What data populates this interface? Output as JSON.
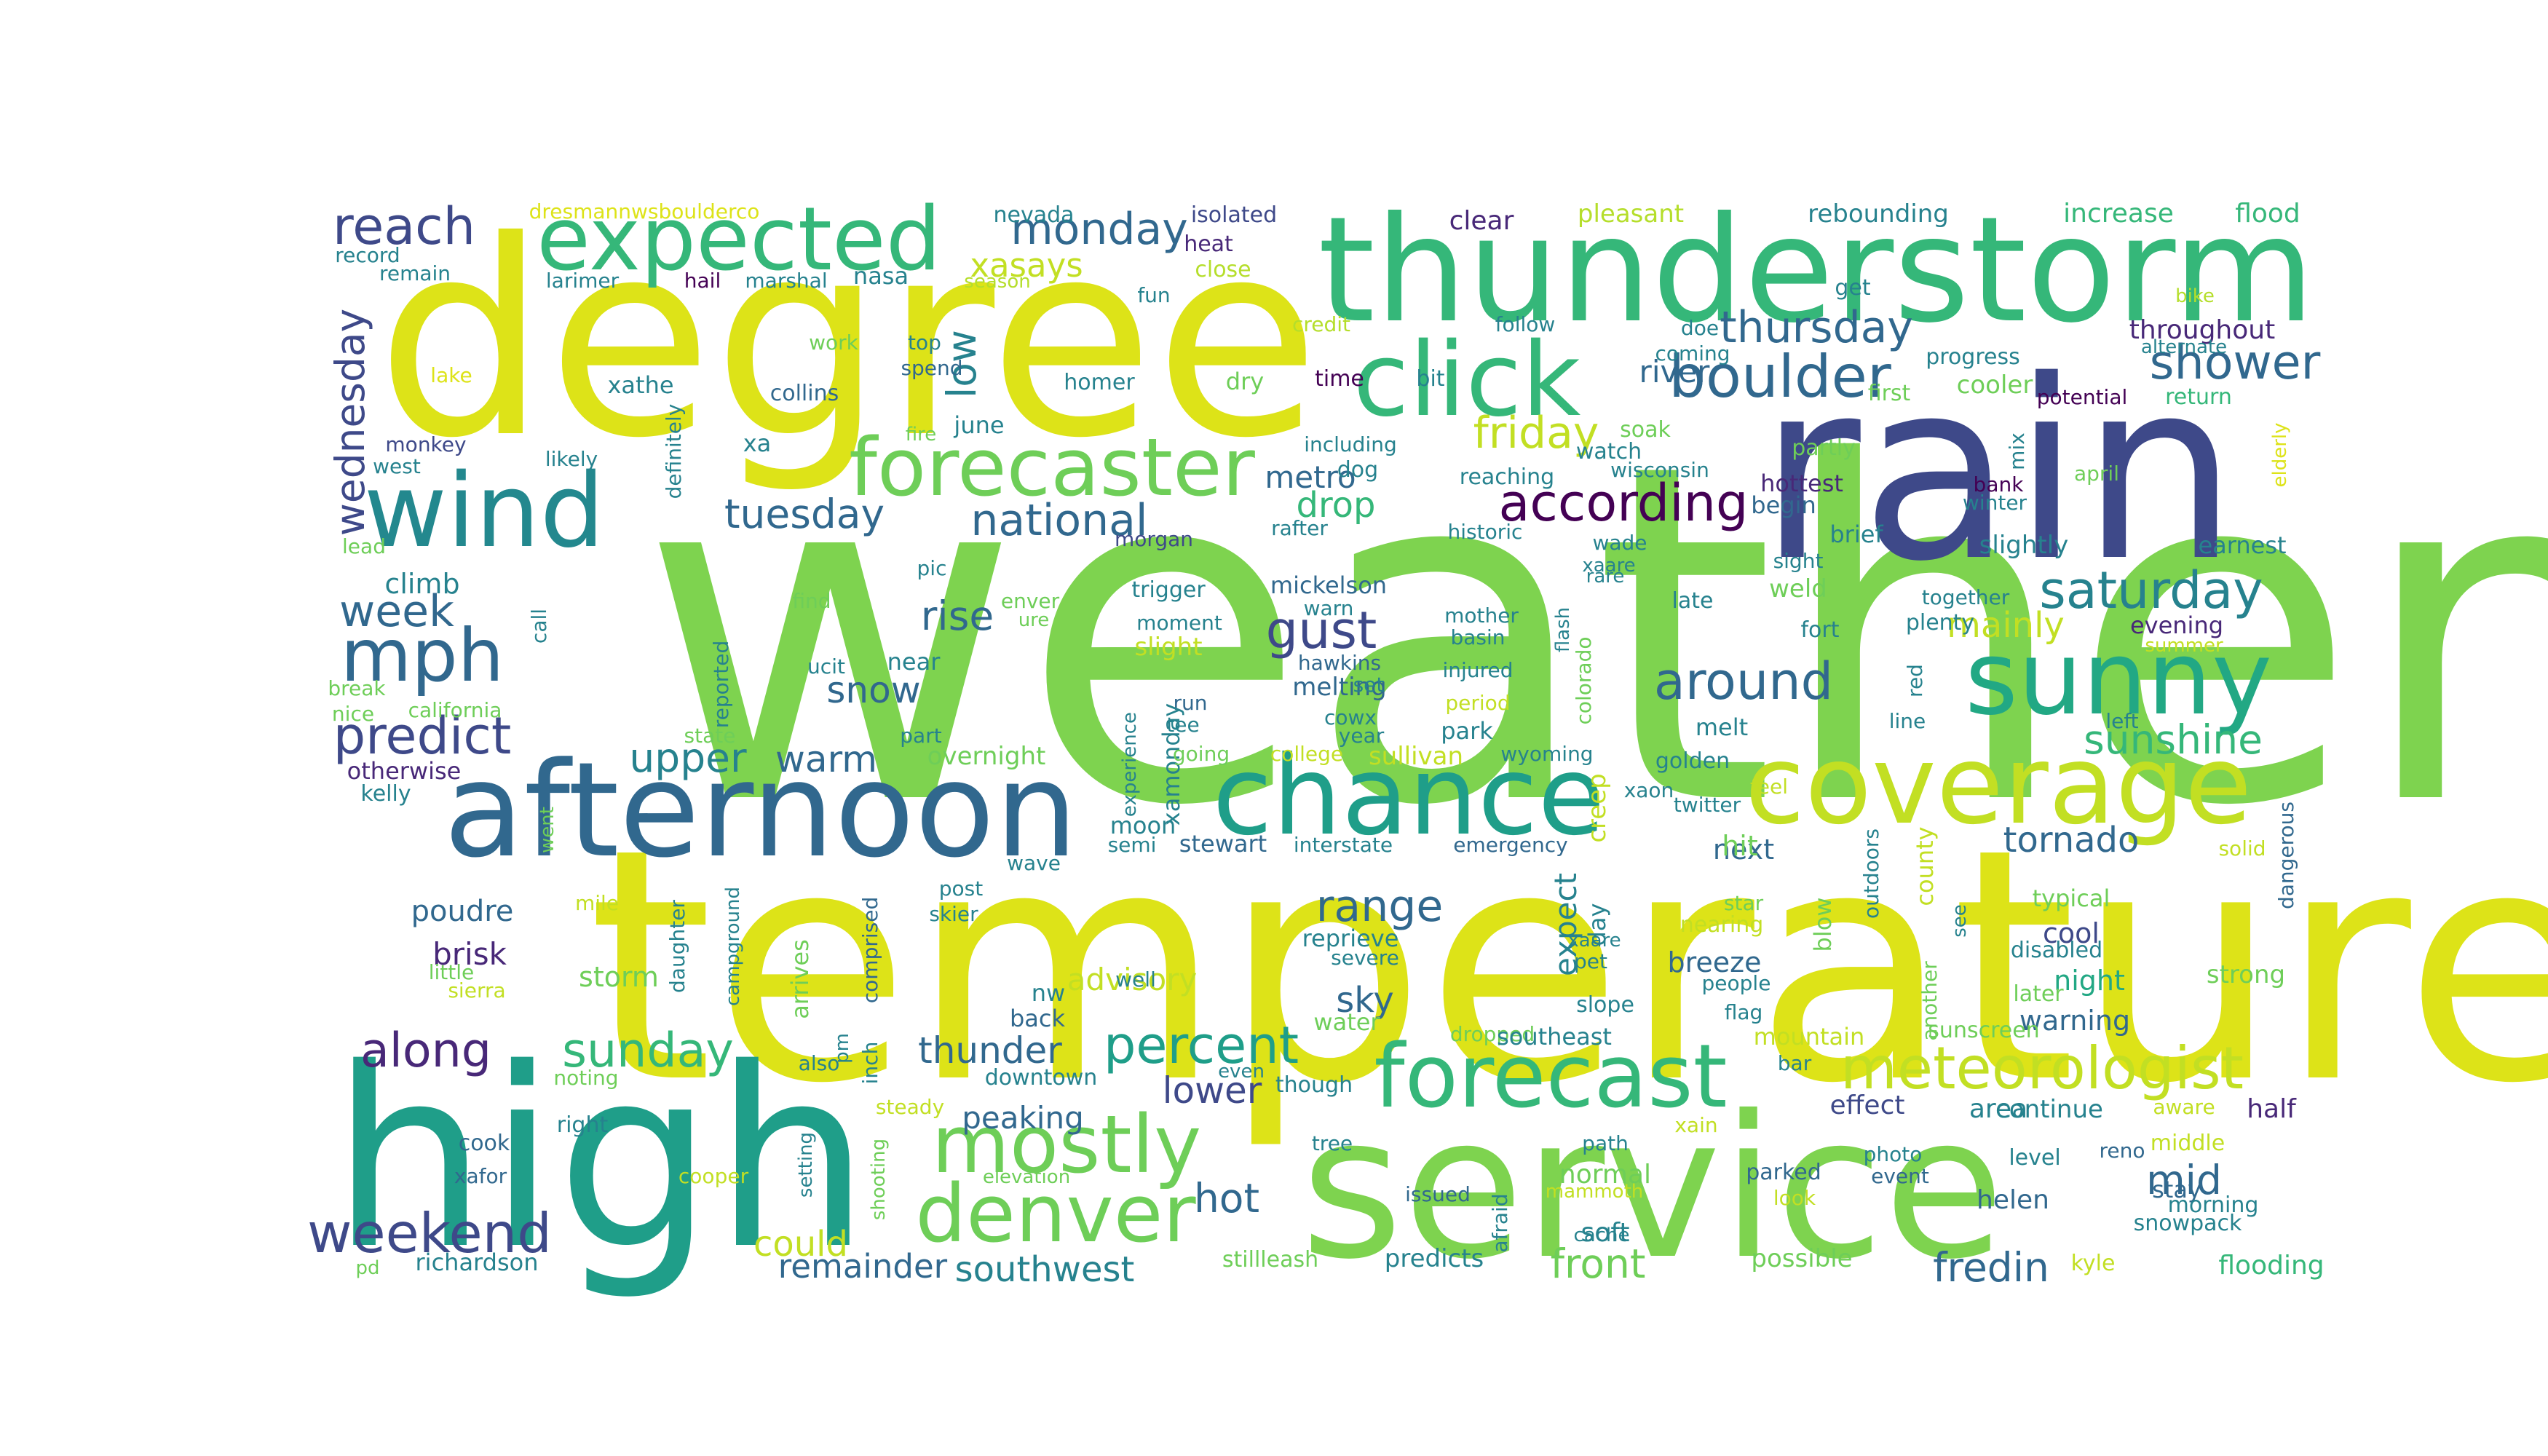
{
  "figure": {
    "background": "#ffffff",
    "palette": [
      "#440154",
      "#482878",
      "#3e4989",
      "#31688e",
      "#26828e",
      "#1f9e89",
      "#35b779",
      "#6ece58",
      "#b5de2b",
      "#fde725"
    ]
  },
  "words": [
    {
      "text": "weather",
      "color": "#7ed34f"
    },
    {
      "text": "temperature",
      "color": "#dde318"
    },
    {
      "text": "degree",
      "color": "#dde318"
    },
    {
      "text": "rain",
      "color": "#3e4989"
    },
    {
      "text": "high",
      "color": "#1f9e89"
    },
    {
      "text": "service",
      "color": "#7ed34f"
    },
    {
      "text": "thunderstorm",
      "color": "#35b779"
    },
    {
      "text": "afternoon",
      "color": "#31688e"
    },
    {
      "text": "chance",
      "color": "#1f9e89"
    },
    {
      "text": "coverage",
      "color": "#c2df23"
    },
    {
      "text": "sunny",
      "color": "#22a884"
    },
    {
      "text": "click",
      "color": "#35b779"
    },
    {
      "text": "wind",
      "color": "#23888e"
    },
    {
      "text": "forecast",
      "color": "#35b779"
    },
    {
      "text": "expected",
      "color": "#35b779"
    },
    {
      "text": "forecaster",
      "color": "#6ece58"
    },
    {
      "text": "mostly",
      "color": "#6ece58"
    },
    {
      "text": "denver",
      "color": "#6ece58"
    },
    {
      "text": "mph",
      "color": "#31688e"
    },
    {
      "text": "meteorologist",
      "color": "#c2df23"
    },
    {
      "text": "boulder",
      "color": "#31688e"
    },
    {
      "text": "according",
      "color": "#440154"
    },
    {
      "text": "weekend",
      "color": "#3e4989"
    },
    {
      "text": "predict",
      "color": "#3e4989"
    },
    {
      "text": "reach",
      "color": "#3e4989"
    },
    {
      "text": "saturday",
      "color": "#26828e"
    },
    {
      "text": "sunday",
      "color": "#35b779"
    },
    {
      "text": "along",
      "color": "#482878"
    },
    {
      "text": "percent",
      "color": "#1f9e89"
    },
    {
      "text": "gust",
      "color": "#3e4989"
    },
    {
      "text": "around",
      "color": "#31688e"
    },
    {
      "text": "shower",
      "color": "#31688e"
    },
    {
      "text": "national",
      "color": "#31688e"
    },
    {
      "text": "thursday",
      "color": "#31688e"
    },
    {
      "text": "friday",
      "color": "#c2df23"
    },
    {
      "text": "monday",
      "color": "#31688e"
    },
    {
      "text": "week",
      "color": "#31688e"
    },
    {
      "text": "tuesday",
      "color": "#31688e"
    },
    {
      "text": "wednesday",
      "color": "#3e4989"
    },
    {
      "text": "range",
      "color": "#31688e"
    },
    {
      "text": "sunshine",
      "color": "#35b779"
    },
    {
      "text": "upper",
      "color": "#26828e"
    },
    {
      "text": "rise",
      "color": "#31688e"
    },
    {
      "text": "snow",
      "color": "#31688e"
    },
    {
      "text": "thunder",
      "color": "#31688e"
    },
    {
      "text": "tornado",
      "color": "#31688e"
    },
    {
      "text": "warm",
      "color": "#31688e"
    },
    {
      "text": "lower",
      "color": "#3e4989"
    },
    {
      "text": "hot",
      "color": "#31688e"
    },
    {
      "text": "mid",
      "color": "#31688e"
    },
    {
      "text": "front",
      "color": "#6ece58"
    },
    {
      "text": "fredin",
      "color": "#31688e"
    },
    {
      "text": "southwest",
      "color": "#26828e"
    },
    {
      "text": "remainder",
      "color": "#31688e"
    },
    {
      "text": "mainly",
      "color": "#c2df23"
    },
    {
      "text": "low",
      "color": "#26828e"
    },
    {
      "text": "xasays",
      "color": "#c2df23"
    },
    {
      "text": "drop",
      "color": "#35b779"
    },
    {
      "text": "metro",
      "color": "#31688e"
    },
    {
      "text": "river",
      "color": "#31688e"
    },
    {
      "text": "sky",
      "color": "#31688e"
    },
    {
      "text": "peaking",
      "color": "#31688e"
    },
    {
      "text": "advisory",
      "color": "#c2df23"
    },
    {
      "text": "could",
      "color": "#c2df23"
    },
    {
      "text": "expect",
      "color": "#26828e"
    },
    {
      "text": "climb",
      "color": "#26828e"
    },
    {
      "text": "poudre",
      "color": "#31688e"
    },
    {
      "text": "brisk",
      "color": "#482878"
    },
    {
      "text": "storm",
      "color": "#6ece58"
    },
    {
      "text": "cool",
      "color": "#3e4989"
    },
    {
      "text": "night",
      "color": "#22a884"
    },
    {
      "text": "warning",
      "color": "#31688e"
    },
    {
      "text": "breeze",
      "color": "#31688e"
    },
    {
      "text": "next",
      "color": "#31688e"
    },
    {
      "text": "hit",
      "color": "#6ece58"
    },
    {
      "text": "area",
      "color": "#26828e"
    },
    {
      "text": "half",
      "color": "#482878"
    },
    {
      "text": "continue",
      "color": "#26828e"
    },
    {
      "text": "effect",
      "color": "#3e4989"
    },
    {
      "text": "soft",
      "color": "#26828e"
    },
    {
      "text": "normal",
      "color": "#6ece58"
    },
    {
      "text": "helen",
      "color": "#31688e"
    },
    {
      "text": "flooding",
      "color": "#35b779"
    },
    {
      "text": "possible",
      "color": "#6ece58"
    },
    {
      "text": "throughout",
      "color": "#482878"
    },
    {
      "text": "increase",
      "color": "#35b779"
    },
    {
      "text": "flood",
      "color": "#35b779"
    },
    {
      "text": "rebounding",
      "color": "#26828e"
    },
    {
      "text": "pleasant",
      "color": "#b5de2b"
    },
    {
      "text": "clear",
      "color": "#482878"
    },
    {
      "text": "isolated",
      "color": "#3e4989"
    },
    {
      "text": "heat",
      "color": "#482878"
    },
    {
      "text": "nevada",
      "color": "#26828e"
    },
    {
      "text": "record",
      "color": "#26828e"
    },
    {
      "text": "remain",
      "color": "#26828e"
    },
    {
      "text": "larimer",
      "color": "#26828e"
    },
    {
      "text": "hail",
      "color": "#440154"
    },
    {
      "text": "marshal",
      "color": "#26828e"
    },
    {
      "text": "nasa",
      "color": "#26828e"
    },
    {
      "text": "season",
      "color": "#b5de2b"
    },
    {
      "text": "dresmannwsboulderco",
      "color": "#dde318"
    },
    {
      "text": "close",
      "color": "#b5de2b"
    },
    {
      "text": "fun",
      "color": "#26828e"
    },
    {
      "text": "credit",
      "color": "#b5de2b"
    },
    {
      "text": "follow",
      "color": "#26828e"
    },
    {
      "text": "doe",
      "color": "#26828e"
    },
    {
      "text": "get",
      "color": "#26828e"
    },
    {
      "text": "bike",
      "color": "#b5de2b"
    },
    {
      "text": "alternate",
      "color": "#26828e"
    },
    {
      "text": "return",
      "color": "#35b779"
    },
    {
      "text": "potential",
      "color": "#440154"
    },
    {
      "text": "progress",
      "color": "#26828e"
    },
    {
      "text": "coming",
      "color": "#26828e"
    },
    {
      "text": "cooler",
      "color": "#6ece58"
    },
    {
      "text": "first",
      "color": "#6ece58"
    },
    {
      "text": "work",
      "color": "#6ece58"
    },
    {
      "text": "top",
      "color": "#26828e"
    },
    {
      "text": "spend",
      "color": "#31688e"
    },
    {
      "text": "lake",
      "color": "#dde318"
    },
    {
      "text": "xathe",
      "color": "#26828e"
    },
    {
      "text": "collins",
      "color": "#31688e"
    },
    {
      "text": "homer",
      "color": "#26828e"
    },
    {
      "text": "dry",
      "color": "#6ece58"
    },
    {
      "text": "time",
      "color": "#440154"
    },
    {
      "text": "bit",
      "color": "#26828e"
    },
    {
      "text": "june",
      "color": "#26828e"
    },
    {
      "text": "fire",
      "color": "#6ece58"
    },
    {
      "text": "xa",
      "color": "#26828e"
    },
    {
      "text": "monkey",
      "color": "#3e4989"
    },
    {
      "text": "west",
      "color": "#26828e"
    },
    {
      "text": "likely",
      "color": "#26828e"
    },
    {
      "text": "definitely",
      "color": "#26828e"
    },
    {
      "text": "lead",
      "color": "#6ece58"
    },
    {
      "text": "morgan",
      "color": "#3e4989"
    },
    {
      "text": "dog",
      "color": "#26828e"
    },
    {
      "text": "including",
      "color": "#26828e"
    },
    {
      "text": "reaching",
      "color": "#26828e"
    },
    {
      "text": "wisconsin",
      "color": "#26828e"
    },
    {
      "text": "soak",
      "color": "#6ece58"
    },
    {
      "text": "watch",
      "color": "#26828e"
    },
    {
      "text": "partly",
      "color": "#6ece58"
    },
    {
      "text": "mix",
      "color": "#26828e"
    },
    {
      "text": "bank",
      "color": "#440154"
    },
    {
      "text": "winter",
      "color": "#26828e"
    },
    {
      "text": "april",
      "color": "#6ece58"
    },
    {
      "text": "elderly",
      "color": "#dde318"
    },
    {
      "text": "hottest",
      "color": "#482878"
    },
    {
      "text": "begin",
      "color": "#31688e"
    },
    {
      "text": "brief",
      "color": "#26828e"
    },
    {
      "text": "slightly",
      "color": "#26828e"
    },
    {
      "text": "earnest",
      "color": "#26828e"
    },
    {
      "text": "rafter",
      "color": "#26828e"
    },
    {
      "text": "historic",
      "color": "#26828e"
    },
    {
      "text": "wade",
      "color": "#26828e"
    },
    {
      "text": "xaare",
      "color": "#26828e"
    },
    {
      "text": "rare",
      "color": "#26828e"
    },
    {
      "text": "sight",
      "color": "#26828e"
    },
    {
      "text": "together",
      "color": "#26828e"
    },
    {
      "text": "weld",
      "color": "#6ece58"
    },
    {
      "text": "pic",
      "color": "#26828e"
    },
    {
      "text": "call",
      "color": "#26828e"
    },
    {
      "text": "find",
      "color": "#6ece58"
    },
    {
      "text": "trigger",
      "color": "#26828e"
    },
    {
      "text": "enver",
      "color": "#6ece58"
    },
    {
      "text": "ure",
      "color": "#6ece58"
    },
    {
      "text": "mickelson",
      "color": "#31688e"
    },
    {
      "text": "warn",
      "color": "#26828e"
    },
    {
      "text": "moment",
      "color": "#26828e"
    },
    {
      "text": "mother",
      "color": "#26828e"
    },
    {
      "text": "basin",
      "color": "#26828e"
    },
    {
      "text": "flash",
      "color": "#26828e"
    },
    {
      "text": "late",
      "color": "#26828e"
    },
    {
      "text": "plenty",
      "color": "#26828e"
    },
    {
      "text": "fort",
      "color": "#26828e"
    },
    {
      "text": "evening",
      "color": "#482878"
    },
    {
      "text": "summer",
      "color": "#c2df23"
    },
    {
      "text": "slight",
      "color": "#c2df23"
    },
    {
      "text": "hawkins",
      "color": "#31688e"
    },
    {
      "text": "melting",
      "color": "#31688e"
    },
    {
      "text": "injured",
      "color": "#26828e"
    },
    {
      "text": "colorado",
      "color": "#6ece58"
    },
    {
      "text": "red",
      "color": "#26828e"
    },
    {
      "text": "break",
      "color": "#6ece58"
    },
    {
      "text": "nice",
      "color": "#6ece58"
    },
    {
      "text": "california",
      "color": "#6ece58"
    },
    {
      "text": "reported",
      "color": "#26828e"
    },
    {
      "text": "ucit",
      "color": "#26828e"
    },
    {
      "text": "near",
      "color": "#26828e"
    },
    {
      "text": "run",
      "color": "#31688e"
    },
    {
      "text": "tee",
      "color": "#26828e"
    },
    {
      "text": "cowx",
      "color": "#26828e"
    },
    {
      "text": "year",
      "color": "#26828e"
    },
    {
      "text": "set",
      "color": "#26828e"
    },
    {
      "text": "period",
      "color": "#c2df23"
    },
    {
      "text": "park",
      "color": "#26828e"
    },
    {
      "text": "melt",
      "color": "#26828e"
    },
    {
      "text": "line",
      "color": "#26828e"
    },
    {
      "text": "left",
      "color": "#26828e"
    },
    {
      "text": "state",
      "color": "#6ece58"
    },
    {
      "text": "part",
      "color": "#26828e"
    },
    {
      "text": "overnight",
      "color": "#6ece58"
    },
    {
      "text": "experience",
      "color": "#26828e"
    },
    {
      "text": "xamonday",
      "color": "#26828e"
    },
    {
      "text": "going",
      "color": "#6ece58"
    },
    {
      "text": "college",
      "color": "#c2df23"
    },
    {
      "text": "sullivan",
      "color": "#c2df23"
    },
    {
      "text": "wyoming",
      "color": "#26828e"
    },
    {
      "text": "creep",
      "color": "#c2df23"
    },
    {
      "text": "golden",
      "color": "#26828e"
    },
    {
      "text": "xaon",
      "color": "#26828e"
    },
    {
      "text": "twitter",
      "color": "#26828e"
    },
    {
      "text": "feel",
      "color": "#c2df23"
    },
    {
      "text": "otherwise",
      "color": "#482878"
    },
    {
      "text": "kelly",
      "color": "#26828e"
    },
    {
      "text": "went",
      "color": "#6ece58"
    },
    {
      "text": "wave",
      "color": "#26828e"
    },
    {
      "text": "moon",
      "color": "#26828e"
    },
    {
      "text": "semi",
      "color": "#26828e"
    },
    {
      "text": "stewart",
      "color": "#31688e"
    },
    {
      "text": "interstate",
      "color": "#26828e"
    },
    {
      "text": "emergency",
      "color": "#31688e"
    },
    {
      "text": "solid",
      "color": "#c2df23"
    },
    {
      "text": "dangerous",
      "color": "#31688e"
    },
    {
      "text": "mile",
      "color": "#c2df23"
    },
    {
      "text": "daughter",
      "color": "#26828e"
    },
    {
      "text": "campground",
      "color": "#26828e"
    },
    {
      "text": "arrives",
      "color": "#6ece58"
    },
    {
      "text": "comprised",
      "color": "#31688e"
    },
    {
      "text": "post",
      "color": "#26828e"
    },
    {
      "text": "skier",
      "color": "#26828e"
    },
    {
      "text": "well",
      "color": "#26828e"
    },
    {
      "text": "reprieve",
      "color": "#26828e"
    },
    {
      "text": "severe",
      "color": "#26828e"
    },
    {
      "text": "day",
      "color": "#26828e"
    },
    {
      "text": "xaare",
      "color": "#26828e"
    },
    {
      "text": "pet",
      "color": "#26828e"
    },
    {
      "text": "slope",
      "color": "#26828e"
    },
    {
      "text": "blow",
      "color": "#6ece58"
    },
    {
      "text": "outdoors",
      "color": "#26828e"
    },
    {
      "text": "county",
      "color": "#c2df23"
    },
    {
      "text": "star",
      "color": "#6ece58"
    },
    {
      "text": "nearing",
      "color": "#c2df23"
    },
    {
      "text": "see",
      "color": "#26828e"
    },
    {
      "text": "another",
      "color": "#6ece58"
    },
    {
      "text": "typical",
      "color": "#6ece58"
    },
    {
      "text": "disabled",
      "color": "#26828e"
    },
    {
      "text": "later",
      "color": "#6ece58"
    },
    {
      "text": "strong",
      "color": "#6ece58"
    },
    {
      "text": "people",
      "color": "#26828e"
    },
    {
      "text": "flag",
      "color": "#26828e"
    },
    {
      "text": "sunscreen",
      "color": "#6ece58"
    },
    {
      "text": "little",
      "color": "#6ece58"
    },
    {
      "text": "sierra",
      "color": "#c2df23"
    },
    {
      "text": "noting",
      "color": "#6ece58"
    },
    {
      "text": "also",
      "color": "#26828e"
    },
    {
      "text": "pm",
      "color": "#26828e"
    },
    {
      "text": "inch",
      "color": "#26828e"
    },
    {
      "text": "back",
      "color": "#31688e"
    },
    {
      "text": "nw",
      "color": "#26828e"
    },
    {
      "text": "water",
      "color": "#6ece58"
    },
    {
      "text": "dropped",
      "color": "#6ece58"
    },
    {
      "text": "southeast",
      "color": "#26828e"
    },
    {
      "text": "mountain",
      "color": "#c2df23"
    },
    {
      "text": "bar",
      "color": "#26828e"
    },
    {
      "text": "aware",
      "color": "#c2df23"
    },
    {
      "text": "downtown",
      "color": "#26828e"
    },
    {
      "text": "steady",
      "color": "#c2df23"
    },
    {
      "text": "even",
      "color": "#26828e"
    },
    {
      "text": "though",
      "color": "#26828e"
    },
    {
      "text": "tree",
      "color": "#26828e"
    },
    {
      "text": "cook",
      "color": "#31688e"
    },
    {
      "text": "right",
      "color": "#26828e"
    },
    {
      "text": "xafor",
      "color": "#31688e"
    },
    {
      "text": "cooper",
      "color": "#c2df23"
    },
    {
      "text": "setting",
      "color": "#26828e"
    },
    {
      "text": "shooting",
      "color": "#6ece58"
    },
    {
      "text": "elevation",
      "color": "#6ece58"
    },
    {
      "text": "path",
      "color": "#26828e"
    },
    {
      "text": "xain",
      "color": "#c2df23"
    },
    {
      "text": "issued",
      "color": "#31688e"
    },
    {
      "text": "afraid",
      "color": "#26828e"
    },
    {
      "text": "mammoth",
      "color": "#c2df23"
    },
    {
      "text": "cache",
      "color": "#26828e"
    },
    {
      "text": "parked",
      "color": "#31688e"
    },
    {
      "text": "look",
      "color": "#c2df23"
    },
    {
      "text": "photo",
      "color": "#26828e"
    },
    {
      "text": "event",
      "color": "#31688e"
    },
    {
      "text": "level",
      "color": "#26828e"
    },
    {
      "text": "reno",
      "color": "#31688e"
    },
    {
      "text": "middle",
      "color": "#c2df23"
    },
    {
      "text": "stay",
      "color": "#31688e"
    },
    {
      "text": "morning",
      "color": "#26828e"
    },
    {
      "text": "snowpack",
      "color": "#26828e"
    },
    {
      "text": "kyle",
      "color": "#c2df23"
    },
    {
      "text": "pd",
      "color": "#6ece58"
    },
    {
      "text": "richardson",
      "color": "#26828e"
    },
    {
      "text": "stillleash",
      "color": "#6ece58"
    },
    {
      "text": "predicts",
      "color": "#26828e"
    }
  ]
}
